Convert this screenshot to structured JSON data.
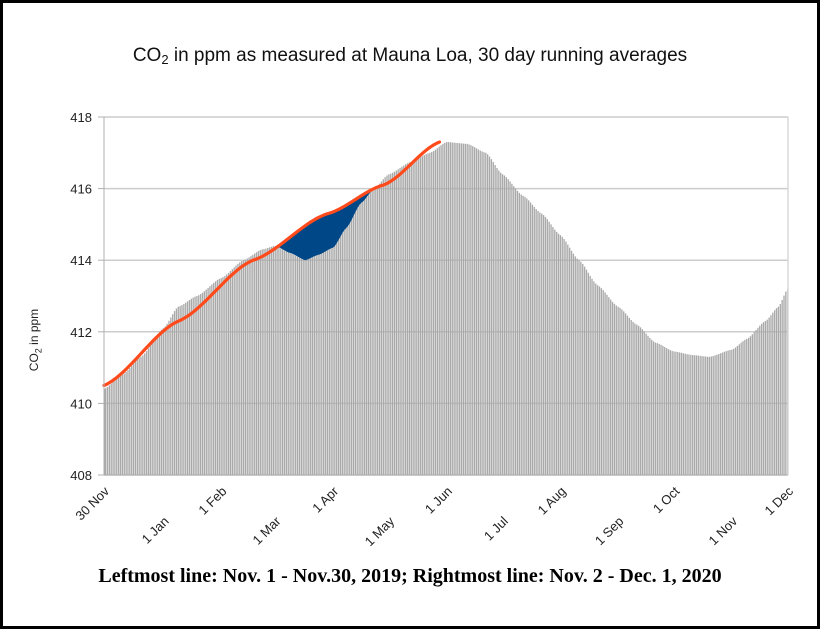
{
  "chart_data": {
    "type": "bar",
    "title_parts": {
      "pre": "CO",
      "sub": "2",
      "post": " in ppm as measured at Mauna Loa, 30 day running averages"
    },
    "ylabel_parts": {
      "pre": "CO",
      "sub": "2",
      "post": " in ppm"
    },
    "xlabel": "",
    "ylim": [
      408,
      418
    ],
    "yticks": [
      408,
      410,
      412,
      414,
      416,
      418
    ],
    "grid": true,
    "x_range_days": [
      0,
      367
    ],
    "xticks": [
      {
        "label": "30 Nov",
        "day": 0,
        "row": 0
      },
      {
        "label": "1 Jan",
        "day": 32,
        "row": 1
      },
      {
        "label": "1 Feb",
        "day": 63,
        "row": 0
      },
      {
        "label": "1 Mar",
        "day": 92,
        "row": 1
      },
      {
        "label": "1 Apr",
        "day": 123,
        "row": 0
      },
      {
        "label": "1 May",
        "day": 153,
        "row": 1
      },
      {
        "label": "1 Jun",
        "day": 184,
        "row": 0
      },
      {
        "label": "1 Jul",
        "day": 214,
        "row": 1
      },
      {
        "label": "1 Aug",
        "day": 245,
        "row": 0
      },
      {
        "label": "1 Sep",
        "day": 276,
        "row": 1
      },
      {
        "label": "1 Oct",
        "day": 306,
        "row": 0
      },
      {
        "label": "1 Nov",
        "day": 337,
        "row": 1
      },
      {
        "label": "1 Dec",
        "day": 367,
        "row": 0
      }
    ],
    "series": [
      {
        "name": "30-day running average (daily bars)",
        "color": "#a9a9a9",
        "points": [
          [
            0,
            410.4
          ],
          [
            10,
            410.8
          ],
          [
            20,
            411.3
          ],
          [
            32,
            412.1
          ],
          [
            40,
            412.7
          ],
          [
            50,
            413.0
          ],
          [
            63,
            413.5
          ],
          [
            75,
            414.0
          ],
          [
            85,
            414.3
          ],
          [
            92,
            414.4
          ],
          [
            100,
            414.2
          ],
          [
            108,
            414.0
          ],
          [
            115,
            414.15
          ],
          [
            123,
            414.35
          ],
          [
            130,
            414.9
          ],
          [
            138,
            415.6
          ],
          [
            145,
            416.0
          ],
          [
            153,
            416.4
          ],
          [
            165,
            416.75
          ],
          [
            175,
            417.0
          ],
          [
            184,
            417.3
          ],
          [
            195,
            417.25
          ],
          [
            205,
            417.0
          ],
          [
            214,
            416.4
          ],
          [
            225,
            415.8
          ],
          [
            235,
            415.3
          ],
          [
            245,
            414.7
          ],
          [
            255,
            414.0
          ],
          [
            265,
            413.3
          ],
          [
            276,
            412.7
          ],
          [
            286,
            412.2
          ],
          [
            296,
            411.7
          ],
          [
            306,
            411.45
          ],
          [
            316,
            411.35
          ],
          [
            325,
            411.3
          ],
          [
            337,
            411.5
          ],
          [
            345,
            411.8
          ],
          [
            355,
            412.3
          ],
          [
            362,
            412.7
          ],
          [
            367,
            413.2
          ]
        ]
      },
      {
        "name": "Expected trend (red line)",
        "color": "#ff4a1c",
        "points": [
          [
            0,
            410.5
          ],
          [
            40,
            412.3
          ],
          [
            80,
            414.0
          ],
          [
            120,
            415.3
          ],
          [
            150,
            416.1
          ],
          [
            180,
            417.3
          ]
        ]
      },
      {
        "name": "Deficit area (blue)",
        "color": "#004787",
        "range_days": [
          85,
          150
        ]
      }
    ]
  },
  "caption": "Leftmost line: Nov. 1 - Nov.30, 2019; Rightmost line: Nov. 2 - Dec. 1, 2020"
}
